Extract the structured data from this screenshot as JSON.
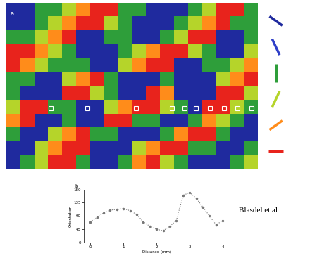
{
  "map": {
    "label": "a",
    "cells": [
      [
        0,
        0,
        2,
        2,
        3,
        4,
        5,
        5,
        2,
        2,
        0,
        0,
        0,
        2,
        3,
        5,
        5,
        2
      ],
      [
        0,
        0,
        2,
        3,
        4,
        5,
        5,
        3,
        2,
        0,
        0,
        0,
        2,
        3,
        4,
        5,
        2,
        2
      ],
      [
        2,
        2,
        3,
        4,
        5,
        0,
        0,
        2,
        2,
        0,
        0,
        2,
        3,
        5,
        5,
        0,
        0,
        2
      ],
      [
        5,
        5,
        4,
        3,
        2,
        0,
        0,
        0,
        2,
        3,
        4,
        5,
        5,
        3,
        2,
        0,
        0,
        3
      ],
      [
        5,
        4,
        3,
        2,
        2,
        2,
        0,
        0,
        3,
        4,
        5,
        5,
        0,
        0,
        2,
        2,
        3,
        4
      ],
      [
        2,
        2,
        0,
        0,
        3,
        4,
        5,
        2,
        0,
        0,
        0,
        2,
        0,
        0,
        0,
        3,
        4,
        5
      ],
      [
        2,
        0,
        0,
        0,
        5,
        5,
        3,
        2,
        0,
        0,
        5,
        4,
        0,
        0,
        0,
        5,
        5,
        3
      ],
      [
        3,
        5,
        5,
        2,
        2,
        0,
        0,
        3,
        4,
        5,
        5,
        3,
        2,
        0,
        5,
        5,
        3,
        2
      ],
      [
        4,
        5,
        0,
        0,
        2,
        0,
        0,
        5,
        5,
        2,
        2,
        0,
        0,
        2,
        4,
        3,
        2,
        0
      ],
      [
        2,
        0,
        0,
        3,
        4,
        5,
        2,
        2,
        0,
        0,
        0,
        2,
        4,
        5,
        5,
        2,
        0,
        0
      ],
      [
        0,
        0,
        3,
        4,
        5,
        5,
        0,
        0,
        0,
        3,
        4,
        5,
        5,
        2,
        2,
        0,
        0,
        2
      ],
      [
        0,
        2,
        3,
        5,
        5,
        2,
        0,
        0,
        2,
        4,
        5,
        3,
        2,
        0,
        0,
        0,
        2,
        3
      ]
    ],
    "track": {
      "row": 7.6,
      "cols": [
        3.2,
        5.8,
        9.3,
        11.9,
        12.8,
        13.6,
        14.6,
        15.6,
        16.6,
        17.6
      ]
    }
  },
  "key": {
    "orientations": [
      150,
      120,
      90,
      60,
      30,
      0
    ],
    "colors": [
      "#1f2a9e",
      "#2f3fc8",
      "#2e9e3a",
      "#b5d42a",
      "#ff8c1a",
      "#e8231c"
    ]
  },
  "chart_data": {
    "type": "line",
    "label": "b",
    "x_label": "Distance (mm)",
    "y_label": "Orientation",
    "x": [
      0,
      0.2,
      0.4,
      0.6,
      0.8,
      1.0,
      1.2,
      1.4,
      1.6,
      1.8,
      2.0,
      2.2,
      2.4,
      2.6,
      2.8,
      3.0,
      3.2,
      3.4,
      3.6,
      3.8,
      4.0
    ],
    "values": [
      70,
      85,
      100,
      110,
      112,
      115,
      108,
      95,
      70,
      55,
      45,
      40,
      55,
      75,
      160,
      170,
      150,
      120,
      90,
      60,
      75
    ],
    "xlim": [
      -0.2,
      4.2
    ],
    "xticks": [
      0,
      1,
      2,
      3,
      4
    ],
    "ylim": [
      0,
      180
    ],
    "yticks": [
      0,
      45,
      90,
      135,
      180
    ],
    "color": "#777777",
    "line_style": "dotted",
    "marker": "o"
  },
  "credit": "Blasdel et al"
}
